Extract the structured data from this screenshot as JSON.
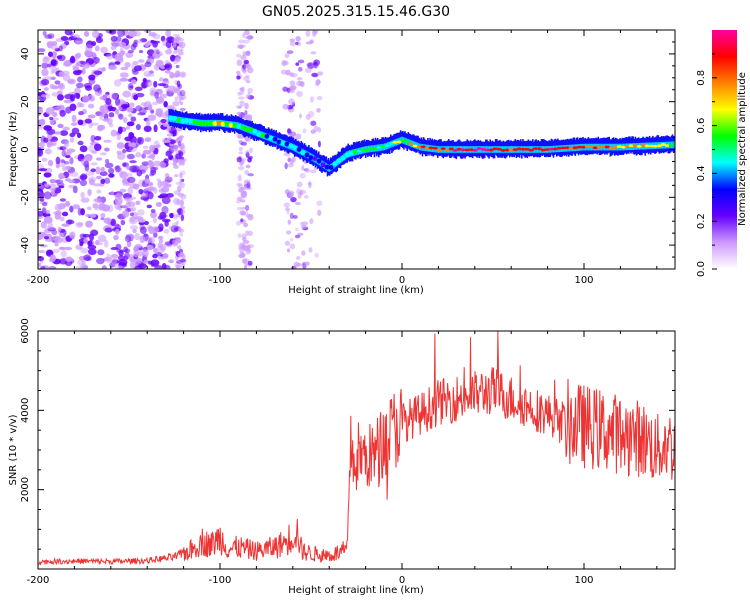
{
  "chart_data": [
    {
      "type": "heatmap",
      "title": "GN05.2025.315.15.46.G30",
      "xlabel": "Height of straight line (km)",
      "ylabel": "Frequency (Hz)",
      "xlim": [
        -200,
        150
      ],
      "ylim": [
        -50,
        50
      ],
      "xticks": [
        -200,
        -100,
        0,
        100
      ],
      "yticks": [
        -40,
        -20,
        0,
        20,
        40
      ],
      "colorbar": {
        "label": "Normalized spectral amplitude",
        "range": [
          0,
          1
        ],
        "ticks": [
          "0.0",
          "0.2",
          "0.4",
          "0.6",
          "0.8"
        ],
        "colors": [
          "#ffffff",
          "#cc99ff",
          "#6600ff",
          "#0000ff",
          "#00ffff",
          "#00ff00",
          "#ffff00",
          "#ff8000",
          "#ff0000",
          "#ff00a0"
        ]
      },
      "noise_region_km": [
        -200,
        -125
      ],
      "noise_bands_km": [
        [
          -125,
          -120
        ],
        [
          -90,
          -83
        ],
        [
          -65,
          -45
        ]
      ],
      "signal_track": {
        "height_km": [
          -128,
          -120,
          -110,
          -100,
          -90,
          -80,
          -70,
          -60,
          -50,
          -40,
          -30,
          -20,
          -10,
          0,
          10,
          20,
          40,
          60,
          80,
          100,
          120,
          150
        ],
        "frequency_hz": [
          13,
          12,
          11,
          11,
          10,
          7,
          4,
          1,
          -3,
          -8,
          -2,
          0,
          1,
          4,
          1,
          0,
          0,
          0,
          0,
          1,
          1,
          2
        ],
        "peak_amplitude": [
          0.4,
          0.5,
          0.55,
          0.75,
          0.5,
          0.45,
          0.45,
          0.4,
          0.3,
          0.3,
          0.45,
          0.5,
          0.55,
          0.6,
          0.8,
          0.85,
          0.95,
          0.9,
          0.9,
          0.85,
          0.75,
          0.6
        ]
      }
    },
    {
      "type": "line",
      "xlabel": "Height of straight line (km)",
      "ylabel": "SNR (10 * v/v)",
      "xlim": [
        -200,
        150
      ],
      "ylim": [
        0,
        6000
      ],
      "xticks": [
        -200,
        -100,
        0,
        100
      ],
      "yticks": [
        2000,
        4000,
        6000
      ],
      "series": [
        {
          "name": "SNR",
          "color": "#ee3333",
          "x": [
            -200,
            -180,
            -160,
            -140,
            -125,
            -115,
            -110,
            -105,
            -100,
            -95,
            -90,
            -85,
            -80,
            -75,
            -70,
            -65,
            -60,
            -58,
            -55,
            -50,
            -45,
            -40,
            -35,
            -30,
            -29,
            -28,
            -26,
            -24,
            -20,
            -15,
            -10,
            -5,
            0,
            10,
            20,
            30,
            40,
            50,
            60,
            70,
            80,
            90,
            100,
            110,
            120,
            130,
            135,
            140,
            145,
            150
          ],
          "values": [
            180,
            200,
            190,
            210,
            300,
            500,
            700,
            600,
            800,
            500,
            550,
            500,
            450,
            500,
            550,
            650,
            850,
            1000,
            450,
            400,
            350,
            350,
            400,
            500,
            2000,
            3200,
            2500,
            2900,
            2800,
            2900,
            3200,
            3500,
            3700,
            3900,
            4200,
            4300,
            4400,
            4500,
            4300,
            4100,
            3900,
            3700,
            3600,
            3500,
            3400,
            3300,
            3200,
            3000,
            3200,
            3000
          ]
        }
      ]
    }
  ]
}
